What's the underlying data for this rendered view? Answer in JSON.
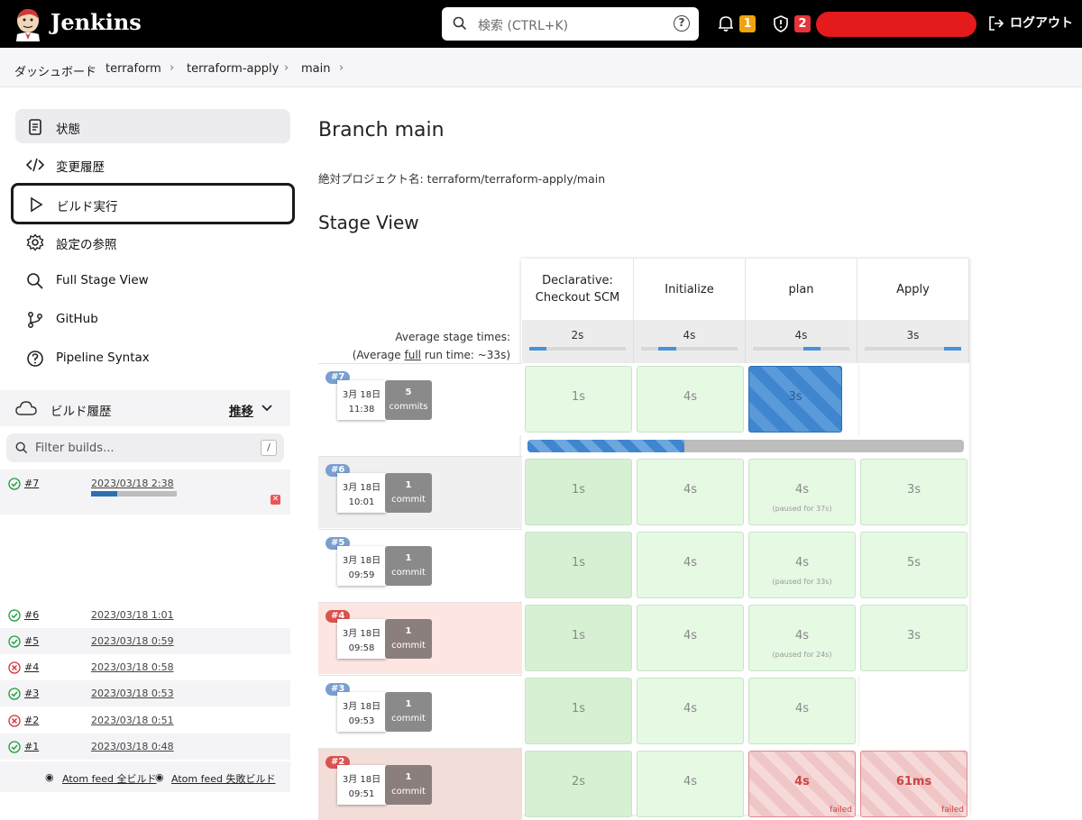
{
  "header": {
    "brand": "Jenkins",
    "search_placeholder": "検索 (CTRL+K)",
    "notifications_count": "1",
    "security_count": "2",
    "logout": "ログアウト"
  },
  "breadcrumb": [
    "ダッシュボード",
    "terraform",
    "terraform-apply",
    "main"
  ],
  "sidebar": {
    "tasks": [
      {
        "label": "状態",
        "icon": "document-icon"
      },
      {
        "label": "変更履歴",
        "icon": "code-icon"
      },
      {
        "label": "ビルド実行",
        "icon": "play-icon"
      },
      {
        "label": "設定の参照",
        "icon": "gear-icon"
      },
      {
        "label": "Full Stage View",
        "icon": "search-icon"
      },
      {
        "label": "GitHub",
        "icon": "branch-icon"
      },
      {
        "label": "Pipeline Syntax",
        "icon": "question-icon"
      }
    ],
    "history_title": "ビルド履歴",
    "trend": "推移",
    "filter_placeholder": "Filter builds...",
    "filter_key": "/",
    "builds": [
      {
        "num": "#7",
        "date": "2023/03/18 2:38",
        "status": "running",
        "progress": 0.3
      },
      {
        "num": "#6",
        "date": "2023/03/18 1:01",
        "status": "success"
      },
      {
        "num": "#5",
        "date": "2023/03/18 0:59",
        "status": "success"
      },
      {
        "num": "#4",
        "date": "2023/03/18 0:58",
        "status": "failed"
      },
      {
        "num": "#3",
        "date": "2023/03/18 0:53",
        "status": "success"
      },
      {
        "num": "#2",
        "date": "2023/03/18 0:51",
        "status": "failed"
      },
      {
        "num": "#1",
        "date": "2023/03/18 0:48",
        "status": "success"
      }
    ],
    "feed_all": "Atom feed 全ビルド",
    "feed_failed": "Atom feed 失敗ビルド"
  },
  "main": {
    "title": "Branch main",
    "full_name": "絶対プロジェクト名: terraform/terraform-apply/main",
    "stage_view_title": "Stage View",
    "stages": [
      "Declarative: Checkout SCM",
      "Initialize",
      "plan",
      "Apply"
    ],
    "avg_label_1": "Average stage times:",
    "avg_label_2a": "(Average ",
    "avg_label_2b": "full",
    "avg_label_2c": " run time: ~33s)",
    "avg_times": [
      "2s",
      "4s",
      "4s",
      "3s"
    ],
    "current_run_progress": 0.36,
    "runs": [
      {
        "num": "#7",
        "date": "3月 18日",
        "time": "11:38",
        "commits_n": "5",
        "commits_label": "commits",
        "stages": [
          "1s",
          "4s",
          "3s",
          ""
        ],
        "paused": [
          "",
          "",
          "",
          ""
        ],
        "state": "running"
      },
      {
        "num": "#6",
        "date": "3月 18日",
        "time": "10:01",
        "commits_n": "1",
        "commits_label": "commit",
        "stages": [
          "1s",
          "4s",
          "4s",
          "3s"
        ],
        "paused": [
          "",
          "",
          "(paused for 37s)",
          ""
        ],
        "state": "success"
      },
      {
        "num": "#5",
        "date": "3月 18日",
        "time": "09:59",
        "commits_n": "1",
        "commits_label": "commit",
        "stages": [
          "1s",
          "4s",
          "4s",
          "5s"
        ],
        "paused": [
          "",
          "",
          "(paused for 33s)",
          ""
        ],
        "state": "success"
      },
      {
        "num": "#4",
        "date": "3月 18日",
        "time": "09:58",
        "commits_n": "1",
        "commits_label": "commit",
        "stages": [
          "1s",
          "4s",
          "4s",
          "3s"
        ],
        "paused": [
          "",
          "",
          "(paused for 24s)",
          ""
        ],
        "state": "failed"
      },
      {
        "num": "#3",
        "date": "3月 18日",
        "time": "09:53",
        "commits_n": "1",
        "commits_label": "commit",
        "stages": [
          "1s",
          "4s",
          "4s",
          ""
        ],
        "paused": [
          "",
          "",
          "",
          ""
        ],
        "state": "success"
      },
      {
        "num": "#2",
        "date": "3月 18日",
        "time": "09:51",
        "commits_n": "1",
        "commits_label": "commit",
        "stages": [
          "2s",
          "4s",
          "4s",
          "61ms"
        ],
        "paused": [
          "",
          "",
          "",
          ""
        ],
        "state": "failed"
      }
    ],
    "failed_label": "failed"
  }
}
